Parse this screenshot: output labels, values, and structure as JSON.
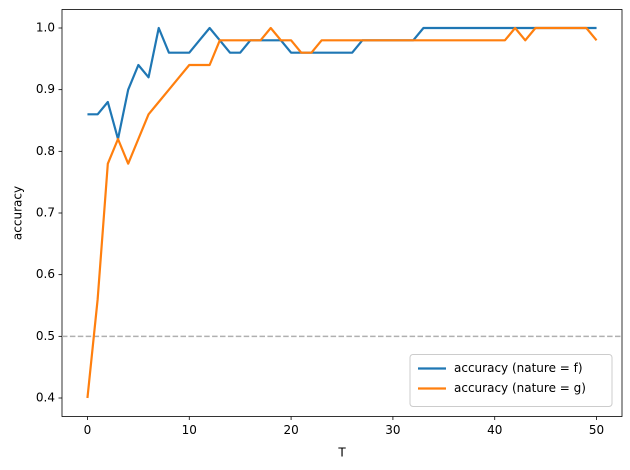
{
  "chart_data": {
    "type": "line",
    "x_label": "T",
    "y_label": "accuracy",
    "x": [
      0,
      1,
      2,
      3,
      4,
      5,
      6,
      7,
      8,
      9,
      10,
      11,
      12,
      13,
      14,
      15,
      16,
      17,
      18,
      19,
      20,
      21,
      22,
      23,
      24,
      25,
      26,
      27,
      28,
      29,
      30,
      31,
      32,
      33,
      34,
      35,
      36,
      37,
      38,
      39,
      40,
      41,
      42,
      43,
      44,
      45,
      46,
      47,
      48,
      49,
      50
    ],
    "series": [
      {
        "name": "accuracy (nature = f)",
        "color": "#1f77b4",
        "values": [
          0.86,
          0.86,
          0.88,
          0.82,
          0.9,
          0.94,
          0.92,
          1.0,
          0.96,
          0.96,
          0.96,
          0.98,
          1.0,
          0.98,
          0.96,
          0.96,
          0.98,
          0.98,
          0.98,
          0.98,
          0.96,
          0.96,
          0.96,
          0.96,
          0.96,
          0.96,
          0.96,
          0.98,
          0.98,
          0.98,
          0.98,
          0.98,
          0.98,
          1.0,
          1.0,
          1.0,
          1.0,
          1.0,
          1.0,
          1.0,
          1.0,
          1.0,
          1.0,
          1.0,
          1.0,
          1.0,
          1.0,
          1.0,
          1.0,
          1.0,
          1.0
        ]
      },
      {
        "name": "accuracy (nature = g)",
        "color": "#ff7f0e",
        "values": [
          0.4,
          0.56,
          0.78,
          0.82,
          0.78,
          0.82,
          0.86,
          0.88,
          0.9,
          0.92,
          0.94,
          0.94,
          0.94,
          0.98,
          0.98,
          0.98,
          0.98,
          0.98,
          1.0,
          0.98,
          0.98,
          0.96,
          0.96,
          0.98,
          0.98,
          0.98,
          0.98,
          0.98,
          0.98,
          0.98,
          0.98,
          0.98,
          0.98,
          0.98,
          0.98,
          0.98,
          0.98,
          0.98,
          0.98,
          0.98,
          0.98,
          0.98,
          1.0,
          0.98,
          1.0,
          1.0,
          1.0,
          1.0,
          1.0,
          1.0,
          0.98
        ]
      }
    ],
    "hline": 0.5,
    "hline_color": "#b0b0b0",
    "xlim": [
      -2.5,
      52.5
    ],
    "xticks": [
      0,
      10,
      20,
      30,
      40,
      50
    ],
    "ylim": [
      0.37,
      1.03
    ],
    "yticks": [
      0.4,
      0.5,
      0.6,
      0.7,
      0.8,
      0.9,
      {
        "value": 1.0,
        "label": "1.0"
      }
    ],
    "legend": "lower right"
  }
}
